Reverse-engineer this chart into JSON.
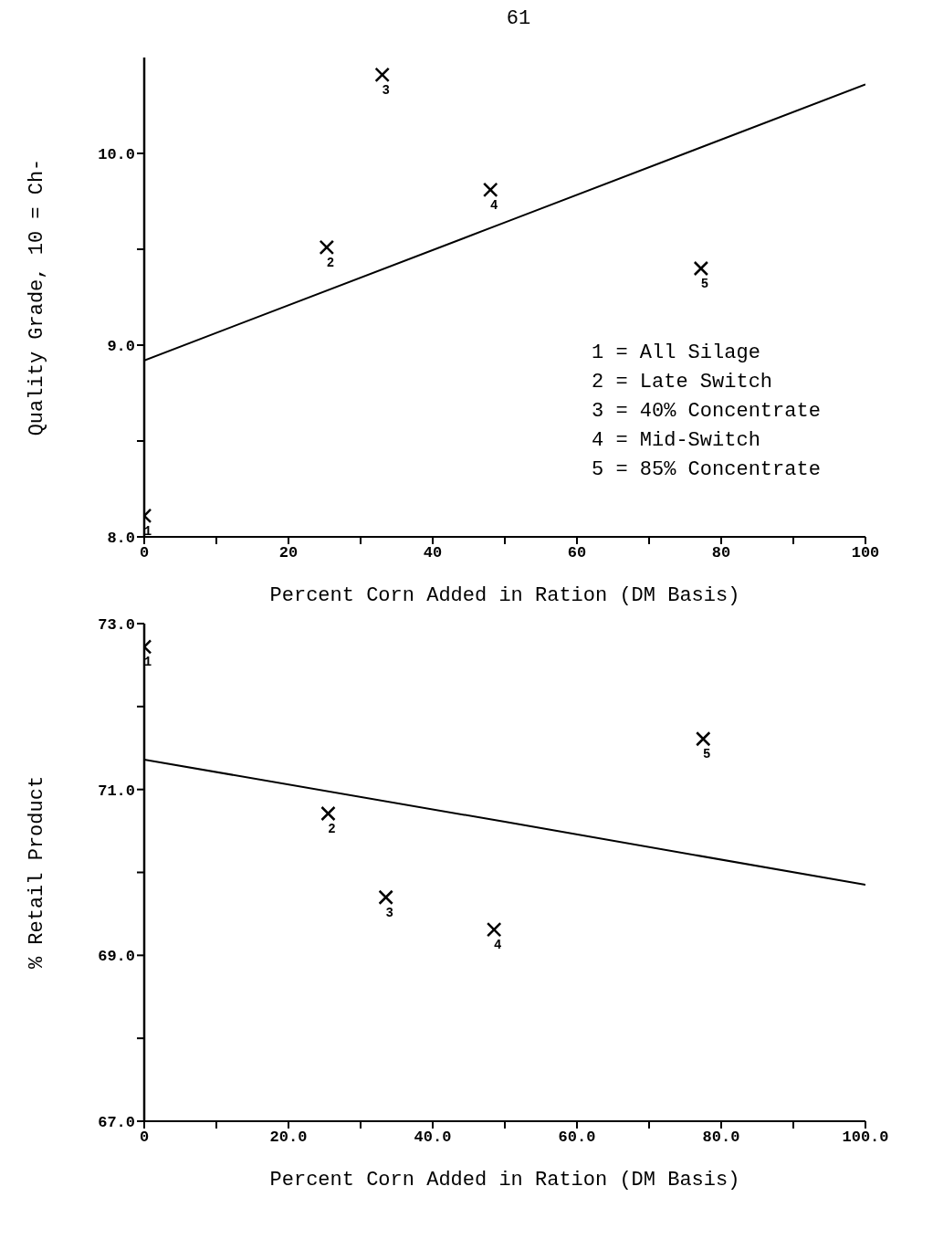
{
  "chart_data": [
    {
      "type": "scatter",
      "title": "61",
      "xlabel": "Percent Corn Added in Ration (DM Basis)",
      "ylabel": "Quality Grade, 10 = Ch-",
      "x": [
        0,
        25.3,
        33,
        48,
        77.2
      ],
      "series": [
        {
          "type": "scatter",
          "color": "#000000",
          "marker": "cross",
          "values": [
            8.11,
            9.51,
            10.41,
            9.81,
            9.4
          ]
        },
        {
          "type": "line",
          "color": "#000000",
          "x": [
            0,
            50,
            100
          ],
          "values": [
            8.92,
            9.64,
            10.36
          ]
        }
      ],
      "xlim": [
        0,
        100
      ],
      "xticks": [
        0,
        {
          "value": 10,
          "label": null
        },
        20,
        {
          "value": 30,
          "label": null
        },
        40,
        {
          "value": 50,
          "label": null
        },
        60,
        {
          "value": 70,
          "label": null
        },
        80,
        {
          "value": 90,
          "label": null
        },
        100
      ],
      "ylim": [
        8,
        10.5
      ],
      "yticks": [
        {
          "value": 8,
          "label": "8.0"
        },
        {
          "value": 8.5,
          "label": null
        },
        {
          "value": 9,
          "label": "9.0"
        },
        {
          "value": 9.5,
          "label": null
        },
        {
          "value": 10,
          "label": "10.0"
        }
      ],
      "annotations": [
        "1 = All Silage",
        "2 = Late Switch",
        "3 = 40% Concentrate",
        "4 = Mid-Switch",
        "5 = 85% Concentrate",
        {
          "text": "1",
          "x": 0,
          "y": 8.11
        },
        {
          "text": "2",
          "x": 25.3,
          "y": 9.51
        },
        {
          "text": "3",
          "x": 33,
          "y": 10.41
        },
        {
          "text": "4",
          "x": 48,
          "y": 9.81
        },
        {
          "text": "5",
          "x": 77.2,
          "y": 9.4
        }
      ]
    },
    {
      "type": "scatter",
      "xlabel": "Percent Corn Added in Ration (DM Basis)",
      "ylabel": "% Retail Product",
      "x": [
        0,
        25.5,
        33.5,
        48.5,
        77.5
      ],
      "series": [
        {
          "type": "scatter",
          "color": "#000000",
          "marker": "cross",
          "values": [
            72.72,
            70.71,
            69.7,
            69.31,
            71.61
          ]
        },
        {
          "type": "line",
          "color": "#000000",
          "x": [
            0,
            50,
            100
          ],
          "values": [
            71.36,
            70.61,
            69.85
          ]
        }
      ],
      "xlim": [
        0,
        100
      ],
      "xticks": [
        0,
        {
          "value": 10,
          "label": null
        },
        {
          "value": 20,
          "label": "20.0"
        },
        {
          "value": 30,
          "label": null
        },
        {
          "value": 40,
          "label": "40.0"
        },
        {
          "value": 50,
          "label": null
        },
        {
          "value": 60,
          "label": "60.0"
        },
        {
          "value": 70,
          "label": null
        },
        {
          "value": 80,
          "label": "80.0"
        },
        {
          "value": 90,
          "label": null
        },
        {
          "value": 100,
          "label": "100.0"
        }
      ],
      "ylim": [
        67,
        73
      ],
      "yticks": [
        {
          "value": 67,
          "label": "67.0"
        },
        {
          "value": 68,
          "label": null
        },
        {
          "value": 69,
          "label": "69.0"
        },
        {
          "value": 70,
          "label": null
        },
        {
          "value": 71,
          "label": "71.0"
        },
        {
          "value": 72,
          "label": null
        },
        {
          "value": 73,
          "label": "73.0"
        }
      ],
      "annotations": [
        {
          "text": "1",
          "x": 0,
          "y": 72.72
        },
        {
          "text": "2",
          "x": 25.5,
          "y": 70.71
        },
        {
          "text": "3",
          "x": 33.5,
          "y": 69.7
        },
        {
          "text": "4",
          "x": 48.5,
          "y": 69.31
        },
        {
          "text": "5",
          "x": 77.5,
          "y": 71.61
        }
      ]
    }
  ]
}
